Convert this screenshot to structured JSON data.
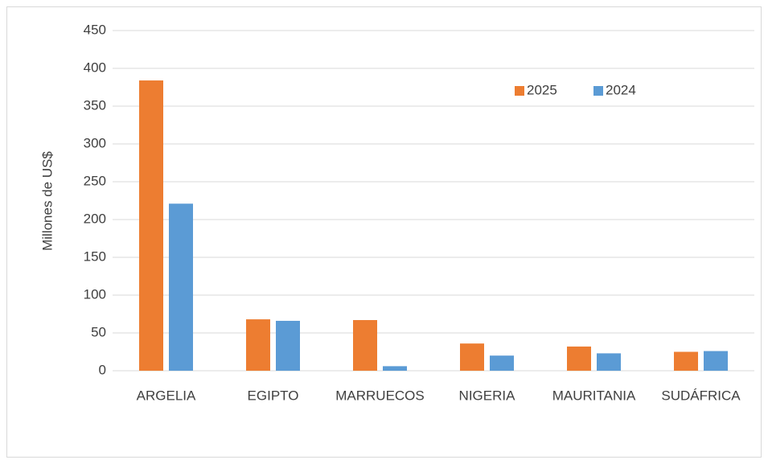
{
  "chart_data": {
    "type": "bar",
    "y_label": "Millones de US$",
    "categories": [
      "ARGELIA",
      "EGIPTO",
      "MARRUECOS",
      "NIGERIA",
      "MAURITANIA",
      "SUDÁFRICA"
    ],
    "series": [
      {
        "name": "2025",
        "color": "#ed7d31",
        "values": [
          384,
          68,
          67,
          36,
          32,
          25
        ]
      },
      {
        "name": "2024",
        "color": "#5b9bd5",
        "values": [
          221,
          66,
          6,
          20,
          23,
          26
        ]
      }
    ],
    "ylim": [
      0,
      450
    ],
    "yticks": [
      0,
      50,
      100,
      150,
      200,
      250,
      300,
      350,
      400,
      450
    ],
    "grid": true,
    "legend": "upper right"
  }
}
